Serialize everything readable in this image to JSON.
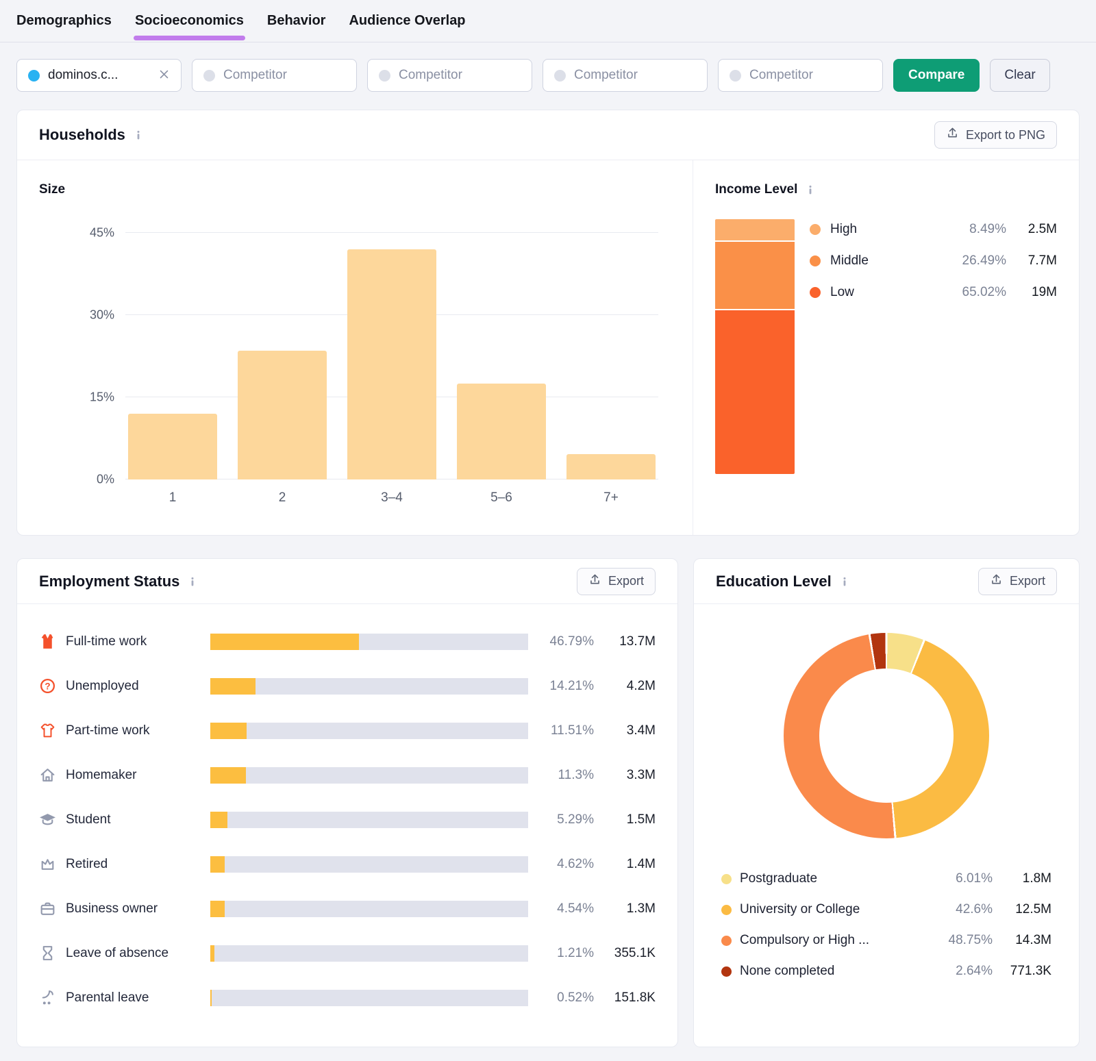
{
  "tabs": [
    {
      "label": "Demographics",
      "active": false
    },
    {
      "label": "Socioeconomics",
      "active": true
    },
    {
      "label": "Behavior",
      "active": false
    },
    {
      "label": "Audience Overlap",
      "active": false
    }
  ],
  "filters": {
    "domain_chip": {
      "label": "dominos.c...",
      "dot_color": "#29b2f2"
    },
    "competitor_placeholder": "Competitor",
    "competitor_slots": 4,
    "compare_label": "Compare",
    "clear_label": "Clear"
  },
  "households": {
    "title": "Households",
    "export_label": "Export to PNG",
    "size_title": "Size",
    "income_title": "Income Level"
  },
  "employment": {
    "title": "Employment Status",
    "export_label": "Export"
  },
  "education": {
    "title": "Education Level",
    "export_label": "Export"
  },
  "chart_data": [
    {
      "id": "household-size",
      "type": "bar",
      "title": "Size",
      "categories": [
        "1",
        "2",
        "3–4",
        "5–6",
        "7+"
      ],
      "values": [
        12,
        23.5,
        42,
        17.5,
        4.6
      ],
      "unit": "%",
      "ylim": [
        0,
        45
      ],
      "yticks": [
        {
          "label": "45%",
          "value": 45
        },
        {
          "label": "30%",
          "value": 30
        },
        {
          "label": "15%",
          "value": 15
        },
        {
          "label": "0%",
          "value": 0
        }
      ],
      "bar_color": "#fdd79b",
      "grid": true,
      "legend": "none"
    },
    {
      "id": "income-level",
      "type": "stacked-bar",
      "title": "Income Level",
      "legend_position": "right",
      "segments": [
        {
          "label": "High",
          "pct": 8.49,
          "percent": "8.49%",
          "value": "2.5M",
          "color": "#fbad6b"
        },
        {
          "label": "Middle",
          "pct": 26.49,
          "percent": "26.49%",
          "value": "7.7M",
          "color": "#fa9048"
        },
        {
          "label": "Low",
          "pct": 65.02,
          "percent": "65.02%",
          "value": "19M",
          "color": "#fa622b"
        }
      ]
    },
    {
      "id": "employment-status",
      "type": "hbar",
      "title": "Employment Status",
      "bar_color": "#fcbe40",
      "track_color": "#e0e2ec",
      "xlim": [
        0,
        100
      ],
      "rows": [
        {
          "icon": "vest-icon",
          "icon_color": "#f4512c",
          "label": "Full-time work",
          "pct": 46.79,
          "percent": "46.79%",
          "value": "13.7M"
        },
        {
          "icon": "question-icon",
          "icon_color": "#f4512c",
          "label": "Unemployed",
          "pct": 14.21,
          "percent": "14.21%",
          "value": "4.2M"
        },
        {
          "icon": "tshirt-icon",
          "icon_color": "#f4512c",
          "label": "Part-time work",
          "pct": 11.51,
          "percent": "11.51%",
          "value": "3.4M"
        },
        {
          "icon": "house-icon",
          "icon_color": "#9299ad",
          "label": "Homemaker",
          "pct": 11.3,
          "percent": "11.3%",
          "value": "3.3M"
        },
        {
          "icon": "graduation-cap-icon",
          "icon_color": "#9299ad",
          "label": "Student",
          "pct": 5.29,
          "percent": "5.29%",
          "value": "1.5M"
        },
        {
          "icon": "crown-icon",
          "icon_color": "#9299ad",
          "label": "Retired",
          "pct": 4.62,
          "percent": "4.62%",
          "value": "1.4M"
        },
        {
          "icon": "briefcase-icon",
          "icon_color": "#9299ad",
          "label": "Business owner",
          "pct": 4.54,
          "percent": "4.54%",
          "value": "1.3M"
        },
        {
          "icon": "hourglass-icon",
          "icon_color": "#9299ad",
          "label": "Leave of absence",
          "pct": 1.21,
          "percent": "1.21%",
          "value": "355.1K"
        },
        {
          "icon": "stroller-icon",
          "icon_color": "#9299ad",
          "label": "Parental leave",
          "pct": 0.52,
          "percent": "0.52%",
          "value": "151.8K"
        }
      ]
    },
    {
      "id": "education-level",
      "type": "donut",
      "title": "Education Level",
      "legend_position": "bottom",
      "segments": [
        {
          "label": "Postgraduate",
          "pct": 6.01,
          "percent": "6.01%",
          "value": "1.8M",
          "color": "#f7e089"
        },
        {
          "label": "University or College",
          "pct": 42.6,
          "percent": "42.6%",
          "value": "12.5M",
          "color": "#fbbb43"
        },
        {
          "label": "Compulsory or High ...",
          "pct": 48.75,
          "percent": "48.75%",
          "value": "14.3M",
          "color": "#fa8a4b"
        },
        {
          "label": "None completed",
          "pct": 2.64,
          "percent": "2.64%",
          "value": "771.3K",
          "color": "#b2350f"
        }
      ]
    }
  ]
}
